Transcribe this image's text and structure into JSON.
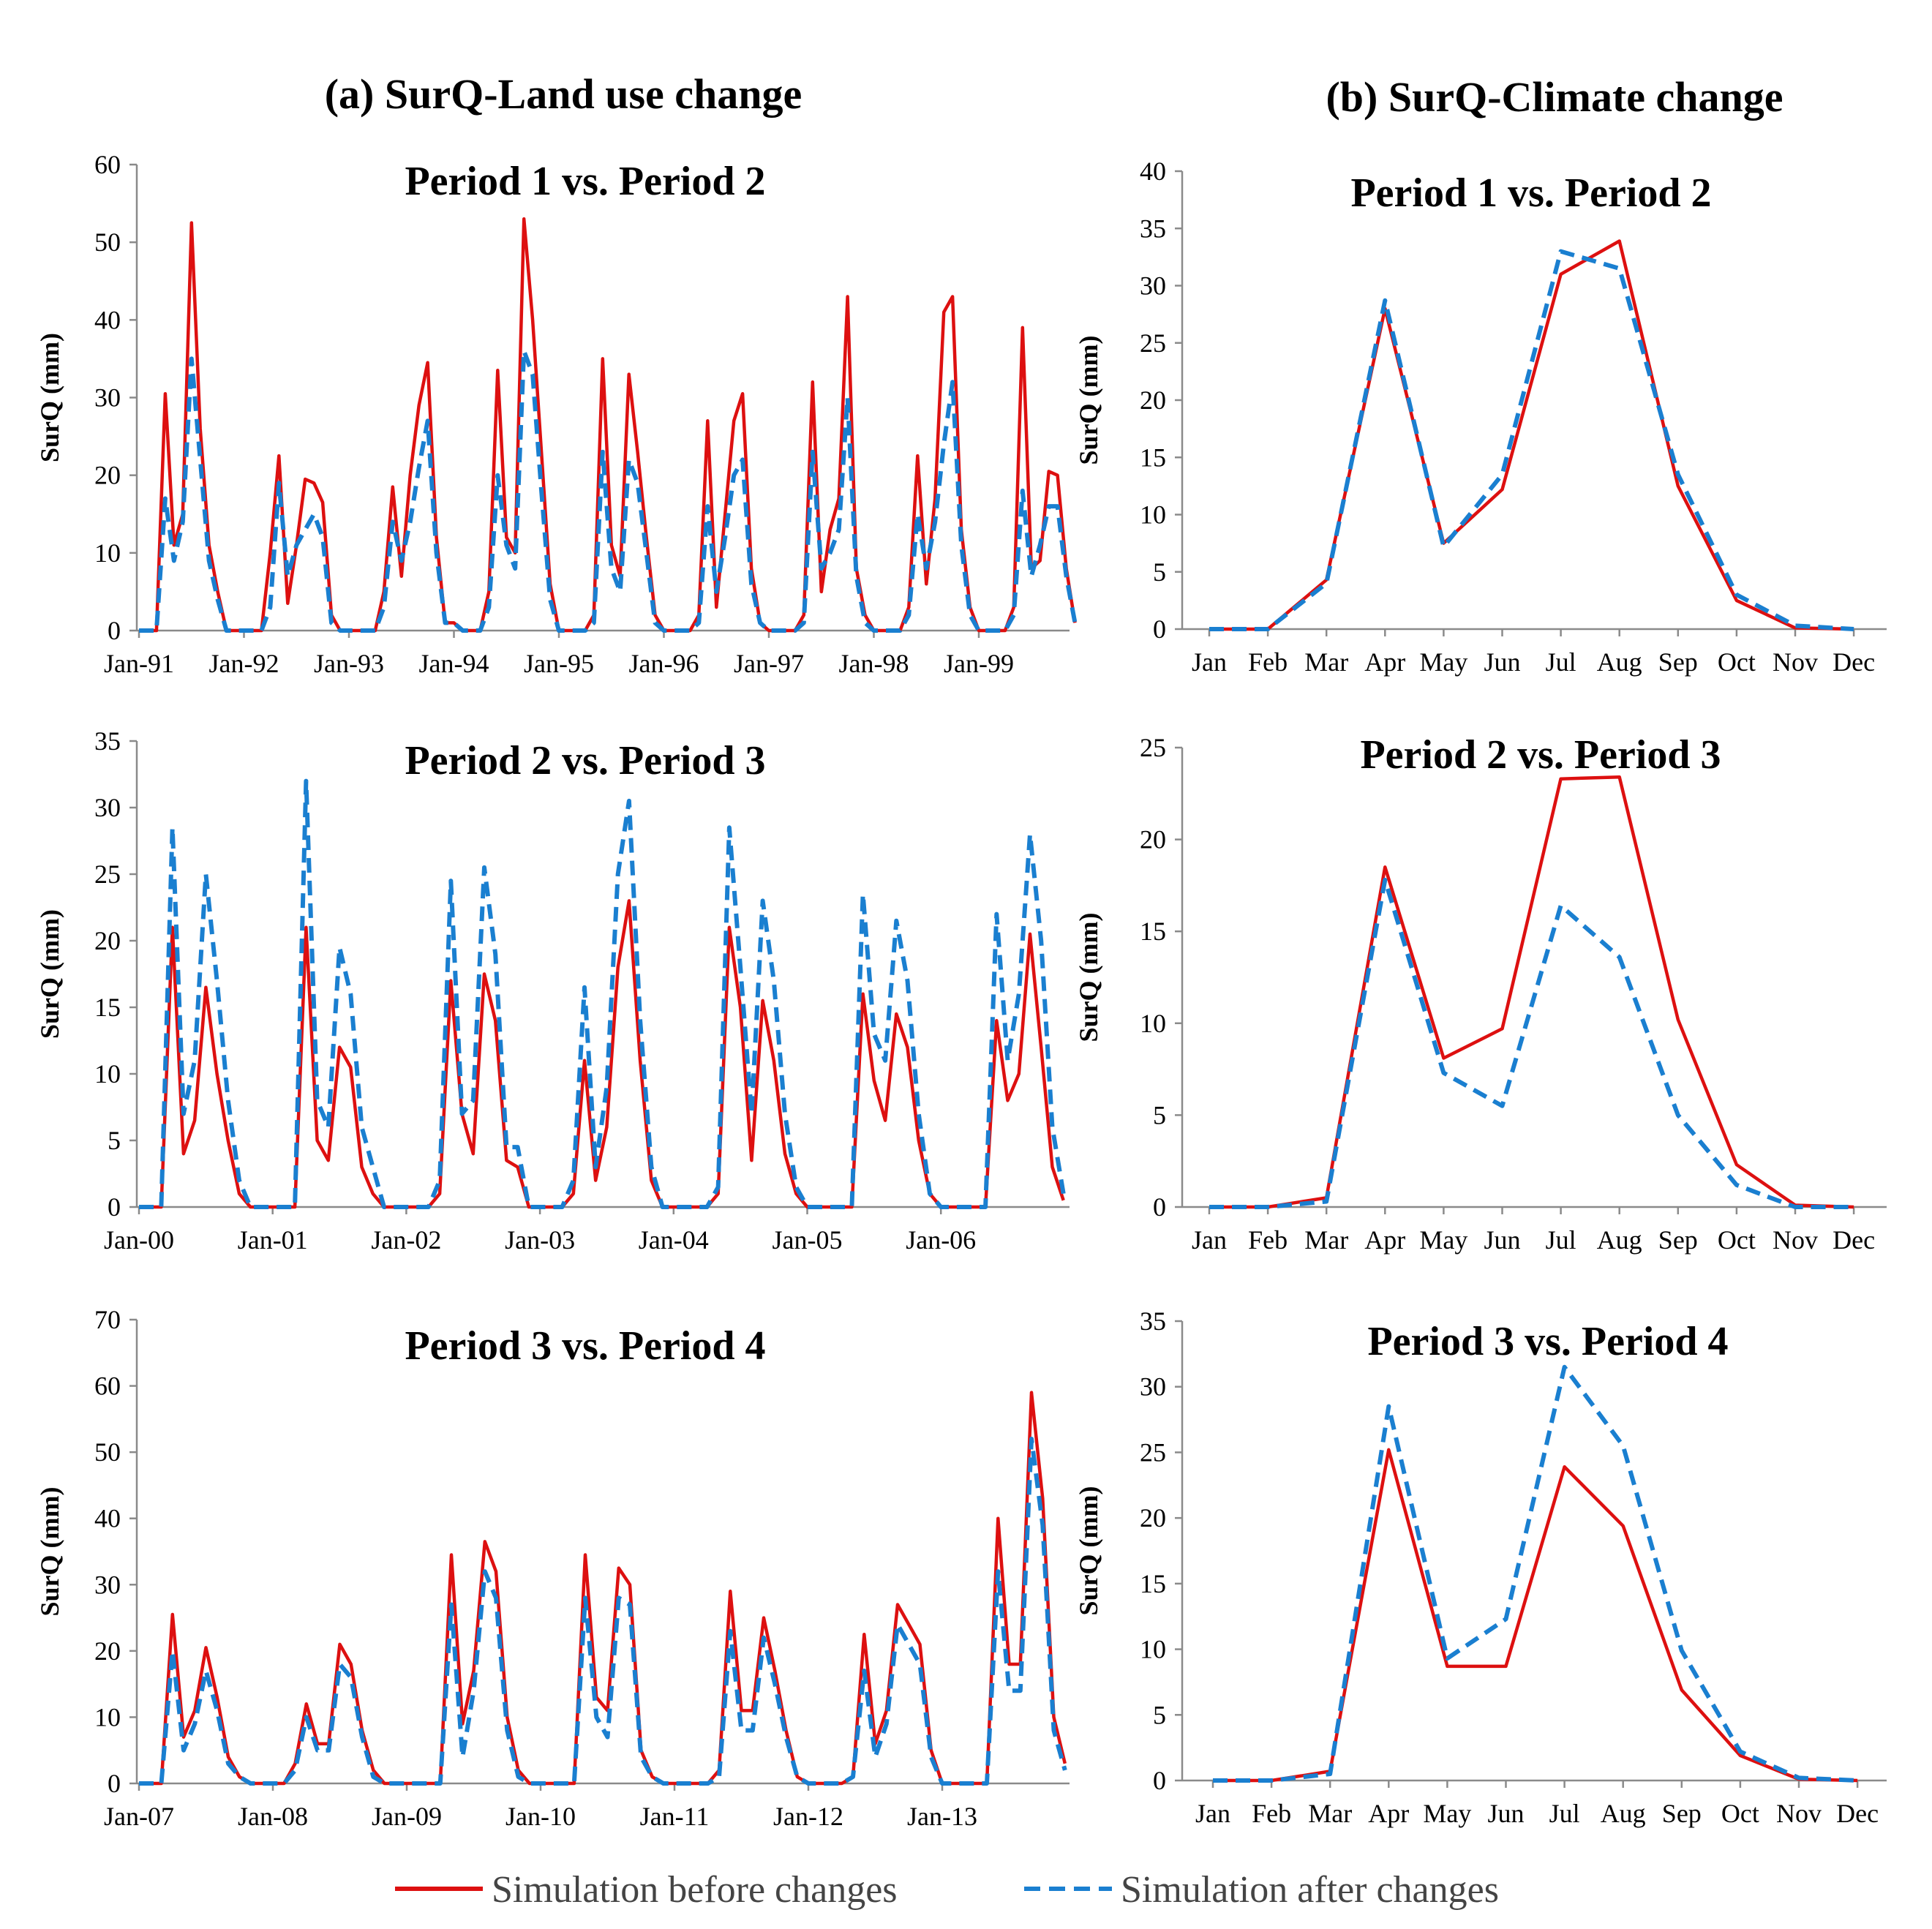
{
  "colors": {
    "before": "#dd1010",
    "after": "#1a7fd0"
  },
  "column_titles": [
    "(a) SurQ-Land use change",
    "(b) SurQ-Climate change"
  ],
  "legend": {
    "before": "Simulation before changes",
    "after": "Simulation after changes"
  },
  "chart_data": [
    {
      "id": "a1",
      "type": "line",
      "title": "Period 1 vs. Period 2",
      "ylabel": "SurQ (mm)",
      "xlabel": "",
      "ylim": [
        0,
        60
      ],
      "yticks": [
        0,
        10,
        20,
        30,
        40,
        50,
        60
      ],
      "x_tick_labels": [
        "Jan-91",
        "Jan-92",
        "Jan-93",
        "Jan-94",
        "Jan-95",
        "Jan-96",
        "Jan-97",
        "Jan-98",
        "Jan-99"
      ],
      "months_per_tick": 12,
      "n_points": 108,
      "series": [
        {
          "name": "Simulation before changes",
          "values": [
            0,
            0,
            0,
            30.5,
            11,
            15,
            52.5,
            26,
            11,
            5,
            0,
            0,
            0,
            0,
            0,
            10,
            22.5,
            3.5,
            11,
            19.5,
            19,
            16.5,
            2,
            0,
            0,
            0,
            0,
            0,
            5,
            18.5,
            7,
            20,
            29,
            34.5,
            12,
            1,
            1,
            0,
            0,
            0,
            5,
            33.5,
            12,
            10,
            53,
            40,
            23,
            6,
            0,
            0,
            0,
            0,
            2,
            35,
            11,
            7,
            33,
            23,
            12,
            2,
            0,
            0,
            0,
            0,
            2,
            27,
            3,
            15,
            27,
            30.5,
            8,
            1,
            0,
            0,
            0,
            0,
            2,
            32,
            5,
            13,
            17,
            43,
            8,
            2,
            0,
            0,
            0,
            0,
            3,
            22.5,
            6,
            17,
            41,
            43,
            13,
            3,
            0,
            0,
            0,
            0,
            3,
            39,
            8,
            9,
            20.5,
            20,
            8,
            1
          ]
        },
        {
          "name": "Simulation after changes",
          "values": [
            0,
            0,
            0,
            17,
            9,
            14,
            35,
            22,
            9,
            4,
            0,
            0,
            0,
            0,
            0,
            3,
            19,
            7,
            11,
            13,
            15,
            12,
            1,
            0,
            0,
            0,
            0,
            0,
            3,
            14,
            9,
            14,
            21,
            27,
            10,
            1,
            1,
            0,
            0,
            0,
            3,
            20,
            11,
            8,
            36,
            33,
            18,
            4,
            0,
            0,
            0,
            0,
            1,
            23,
            8,
            5,
            22,
            19,
            10,
            1,
            0,
            0,
            0,
            0,
            1,
            16,
            5,
            12,
            20,
            22,
            6,
            1,
            0,
            0,
            0,
            0,
            1,
            23,
            8,
            10,
            13,
            30,
            7,
            1,
            0,
            0,
            0,
            0,
            2,
            15,
            8,
            14,
            24,
            32,
            11,
            2,
            0,
            0,
            0,
            0,
            2,
            18,
            7,
            11,
            16,
            16,
            7,
            1
          ]
        }
      ]
    },
    {
      "id": "a2",
      "type": "line",
      "title": "Period 2 vs. Period 3",
      "ylabel": "SurQ (mm)",
      "xlabel": "",
      "ylim": [
        0,
        35
      ],
      "yticks": [
        0,
        5,
        10,
        15,
        20,
        25,
        30,
        35
      ],
      "x_tick_labels": [
        "Jan-00",
        "Jan-01",
        "Jan-02",
        "Jan-03",
        "Jan-04",
        "Jan-05",
        "Jan-06"
      ],
      "months_per_tick": 12,
      "n_points": 84,
      "series": [
        {
          "name": "Simulation before changes",
          "values": [
            0,
            0,
            0,
            21,
            4,
            6.5,
            16.5,
            10,
            5,
            1,
            0,
            0,
            0,
            0,
            0,
            21,
            5,
            3.5,
            12,
            10.5,
            3,
            1,
            0,
            0,
            0,
            0,
            0,
            1,
            17,
            7,
            4,
            17.5,
            14,
            3.5,
            3,
            0,
            0,
            0,
            0,
            1,
            11,
            2,
            6,
            18,
            23,
            11,
            2,
            0,
            0,
            0,
            0,
            0,
            1,
            21,
            15,
            3.5,
            15.5,
            11,
            4,
            1,
            0,
            0,
            0,
            0,
            0,
            16,
            9.5,
            6.5,
            14.5,
            12,
            5,
            1,
            0,
            0,
            0,
            0,
            0,
            14,
            8,
            10,
            20.5,
            12,
            3,
            0.5
          ]
        },
        {
          "name": "Simulation after changes",
          "values": [
            0,
            0,
            0,
            28.5,
            7,
            11,
            25,
            17,
            8,
            2,
            0,
            0,
            0,
            0,
            0,
            32,
            8,
            6,
            19.5,
            16,
            6,
            3,
            0,
            0,
            0,
            0,
            0,
            2,
            24.5,
            7,
            8,
            25.5,
            19,
            4.5,
            4.5,
            0,
            0,
            0,
            0,
            2,
            16.5,
            3,
            9,
            25,
            30.5,
            14,
            3,
            0,
            0,
            0,
            0,
            0,
            1.5,
            28.5,
            18,
            7,
            23,
            17,
            7,
            1.5,
            0,
            0,
            0,
            0,
            0,
            23.5,
            13,
            11,
            21.5,
            17,
            7,
            1,
            0,
            0,
            0,
            0,
            0,
            22,
            11,
            16,
            28,
            20,
            6,
            1
          ]
        }
      ]
    },
    {
      "id": "a3",
      "type": "line",
      "title": "Period 3 vs. Period 4",
      "ylabel": "SurQ (mm)",
      "xlabel": "",
      "ylim": [
        0,
        70
      ],
      "yticks": [
        0,
        10,
        20,
        30,
        40,
        50,
        60,
        70
      ],
      "x_tick_labels": [
        "Jan-07",
        "Jan-08",
        "Jan-09",
        "Jan-10",
        "Jan-11",
        "Jan-12",
        "Jan-13"
      ],
      "months_per_tick": 12,
      "n_points": 84,
      "series": [
        {
          "name": "Simulation before changes",
          "values": [
            0,
            0,
            0,
            25.5,
            7,
            11,
            20.5,
            13,
            4,
            1,
            0,
            0,
            0,
            0,
            3,
            12,
            6,
            6,
            21,
            18,
            8,
            2,
            0,
            0,
            0,
            0,
            0,
            0,
            34.5,
            9,
            17,
            36.5,
            32,
            10,
            2,
            0,
            0,
            0,
            0,
            0,
            34.5,
            13,
            11,
            32.5,
            30,
            5,
            1,
            0,
            0,
            0,
            0,
            0,
            2,
            29,
            11,
            11,
            25,
            17,
            8,
            1,
            0,
            0,
            0,
            0,
            1,
            22.5,
            6,
            11,
            27,
            24,
            21,
            5,
            0,
            0,
            0,
            0,
            0,
            40,
            18,
            18,
            59,
            43,
            10,
            3
          ]
        },
        {
          "name": "Simulation after changes",
          "values": [
            0,
            0,
            0,
            20,
            5,
            9,
            17,
            11,
            3,
            1,
            0,
            0,
            0,
            0,
            2,
            10,
            5,
            5,
            18,
            16,
            7,
            1,
            0,
            0,
            0,
            0,
            0,
            0,
            27,
            4,
            14,
            32,
            28,
            8,
            1,
            0,
            0,
            0,
            0,
            0,
            28,
            10,
            7,
            28,
            27,
            4,
            1,
            0,
            0,
            0,
            0,
            0,
            1,
            23,
            8,
            8,
            22,
            15,
            7,
            1,
            0,
            0,
            0,
            0,
            1,
            17,
            4,
            9,
            24,
            21,
            18,
            4,
            0,
            0,
            0,
            0,
            0,
            32,
            14,
            14,
            52,
            39,
            8,
            2
          ]
        }
      ]
    },
    {
      "id": "b1",
      "type": "line",
      "title": "Period 1 vs. Period 2",
      "ylabel": "SurQ (mm)",
      "xlabel": "",
      "ylim": [
        0,
        40
      ],
      "yticks": [
        0,
        5,
        10,
        15,
        20,
        25,
        30,
        35,
        40
      ],
      "categories": [
        "Jan",
        "Feb",
        "Mar",
        "Apr",
        "May",
        "Jun",
        "Jul",
        "Aug",
        "Sep",
        "Oct",
        "Nov",
        "Dec"
      ],
      "series": [
        {
          "name": "Simulation before changes",
          "values": [
            0,
            0,
            4.3,
            28,
            7.5,
            12.2,
            31,
            33.9,
            12.5,
            2.5,
            0.1,
            0
          ]
        },
        {
          "name": "Simulation after changes",
          "values": [
            0,
            0,
            4,
            28.7,
            7.2,
            13.5,
            33,
            31.5,
            13.5,
            3,
            0.3,
            0
          ]
        }
      ]
    },
    {
      "id": "b2",
      "type": "line",
      "title": "Period 2 vs. Period 3",
      "ylabel": "SurQ (mm)",
      "xlabel": "",
      "ylim": [
        0,
        25
      ],
      "yticks": [
        0,
        5,
        10,
        15,
        20,
        25
      ],
      "categories": [
        "Jan",
        "Feb",
        "Mar",
        "Apr",
        "May",
        "Jun",
        "Jul",
        "Aug",
        "Sep",
        "Oct",
        "Nov",
        "Dec"
      ],
      "series": [
        {
          "name": "Simulation before changes",
          "values": [
            0,
            0,
            0.5,
            18.5,
            8.1,
            9.7,
            23.3,
            23.4,
            10.2,
            2.3,
            0.1,
            0
          ]
        },
        {
          "name": "Simulation after changes",
          "values": [
            0,
            0,
            0.3,
            17.8,
            7.3,
            5.5,
            16.4,
            13.6,
            5,
            1.2,
            0,
            0
          ]
        }
      ]
    },
    {
      "id": "b3",
      "type": "line",
      "title": "Period 3 vs. Period 4",
      "ylabel": "SurQ (mm)",
      "xlabel": "",
      "ylim": [
        0,
        35
      ],
      "yticks": [
        0,
        5,
        10,
        15,
        20,
        25,
        30,
        35
      ],
      "categories": [
        "Jan",
        "Feb",
        "Mar",
        "Apr",
        "May",
        "Jun",
        "Jul",
        "Aug",
        "Sep",
        "Oct",
        "Nov",
        "Dec"
      ],
      "series": [
        {
          "name": "Simulation before changes",
          "values": [
            0,
            0,
            0.7,
            25.2,
            8.7,
            8.7,
            23.9,
            19.4,
            6.9,
            1.9,
            0.1,
            0
          ]
        },
        {
          "name": "Simulation after changes",
          "values": [
            0,
            0,
            0.5,
            28.5,
            9.3,
            12.3,
            31.5,
            25.5,
            9.9,
            2.2,
            0.2,
            0
          ]
        }
      ]
    }
  ]
}
